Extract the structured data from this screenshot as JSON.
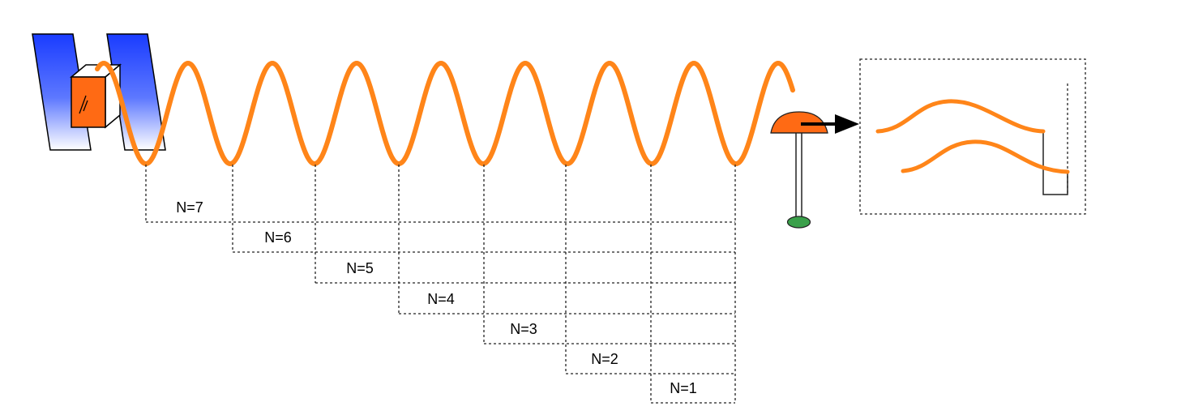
{
  "labels": [
    "N=7",
    "N=6",
    "N=5",
    "N=4",
    "N=3",
    "N=2",
    "N=1"
  ],
  "colors": {
    "wave": "#ff8519",
    "plate_top": "#1a3cff",
    "plate_bottom": "#ffffff",
    "block": "#ff6a14",
    "detector": "#ff6a14",
    "detector_base": "#3aa04a",
    "line": "#222222"
  },
  "icons": {
    "source": "blue-mirror-plates-icon",
    "block": "orange-cube-icon",
    "detector": "dome-detector-icon",
    "arrow": "right-arrow-icon"
  }
}
